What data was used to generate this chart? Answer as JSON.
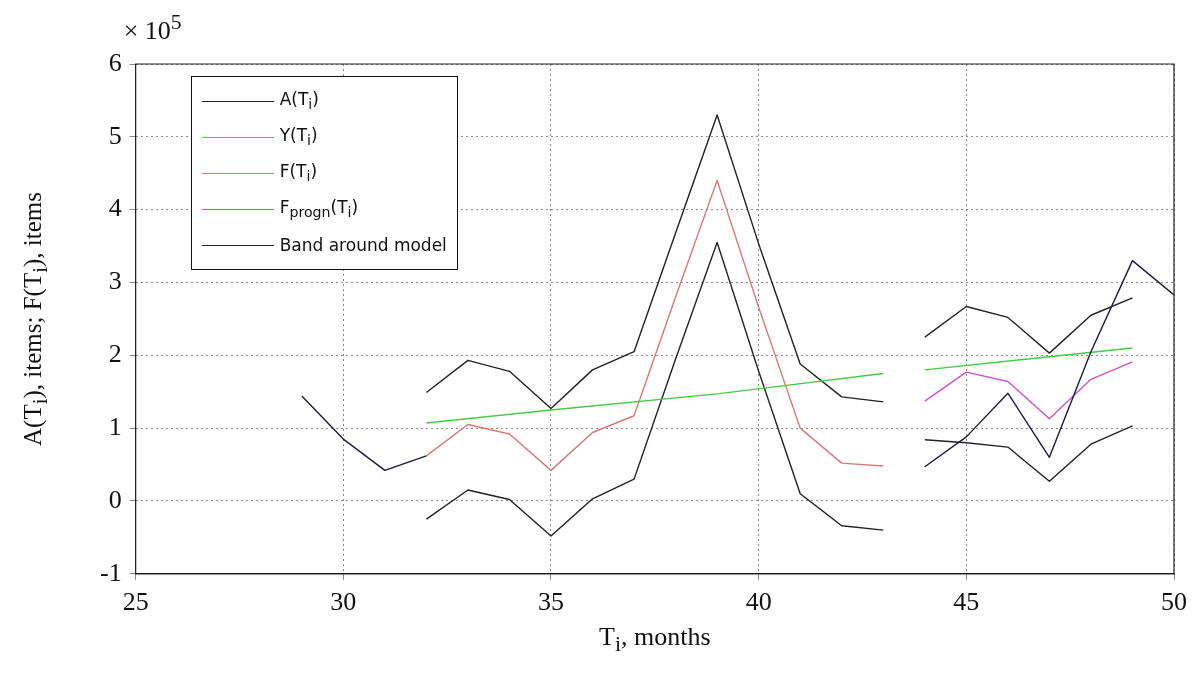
{
  "chart_data": {
    "type": "line",
    "xlabel": "T$_{i}$, months",
    "ylabel": "A(T$_{i}$), items; F(T$_{i}$), items",
    "annotations": [
      "× 10$^{5}$"
    ],
    "xlim": [
      25,
      50
    ],
    "xticks": [
      25,
      30,
      35,
      40,
      45,
      50
    ],
    "ylim": [
      -1,
      6
    ],
    "yticks": [
      -1,
      0,
      1,
      2,
      3,
      4,
      5,
      6
    ],
    "grid": true,
    "legend": "top left",
    "series": [
      {
        "name": "A(T$_{i}$)",
        "color": "#1c1c3c",
        "x": [
          29,
          30,
          31,
          32,
          43.5,
          44,
          45,
          46,
          47,
          48,
          49,
          50
        ],
        "values": [
          1.44,
          0.85,
          0.42,
          0.62,
          null,
          0.47,
          0.88,
          1.48,
          0.6,
          2.05,
          3.3,
          2.83
        ]
      },
      {
        "name": "Y(T$_{i}$)",
        "color": "#44cc44",
        "x": [
          32,
          35,
          39,
          43,
          43.5,
          44,
          49
        ],
        "values": [
          1.07,
          1.25,
          1.47,
          1.75,
          null,
          1.8,
          2.1
        ]
      },
      {
        "name": "F(T$_{i}$)",
        "color": "#d47a7a",
        "x": [
          32,
          33,
          34,
          35,
          36,
          37,
          38,
          39,
          40,
          41,
          42,
          43
        ],
        "values": [
          0.62,
          1.05,
          0.92,
          0.42,
          0.94,
          1.17,
          2.8,
          4.4,
          2.66,
          1.0,
          0.52,
          0.48
        ]
      },
      {
        "name": "F$_{progn}$(T$_{i}$)",
        "color": "#cc55cc",
        "x": [
          44,
          45,
          46,
          47,
          48,
          49
        ],
        "values": [
          1.37,
          1.77,
          1.64,
          1.13,
          1.67,
          1.91
        ]
      },
      {
        "name": "Band around model",
        "color": "#222222",
        "x": [
          32,
          33,
          34,
          35,
          36,
          37,
          38,
          39,
          40,
          41,
          42,
          43,
          43.5,
          44,
          45,
          46,
          47,
          48,
          49
        ],
        "values": [
          1.49,
          1.93,
          1.78,
          1.27,
          1.8,
          2.05,
          3.68,
          5.3,
          3.53,
          1.88,
          1.43,
          1.36,
          null,
          2.25,
          2.67,
          2.52,
          2.03,
          2.55,
          2.79
        ]
      },
      {
        "color": "#222222",
        "x": [
          32,
          33,
          34,
          35,
          36,
          37,
          38,
          39,
          40,
          41,
          42,
          43,
          43.5,
          44,
          45,
          46,
          47,
          48,
          49
        ],
        "values": [
          -0.25,
          0.15,
          0.02,
          -0.48,
          0.03,
          0.3,
          1.95,
          3.55,
          1.78,
          0.1,
          -0.34,
          -0.4,
          null,
          0.84,
          0.8,
          0.74,
          0.27,
          0.78,
          1.03
        ]
      }
    ]
  }
}
